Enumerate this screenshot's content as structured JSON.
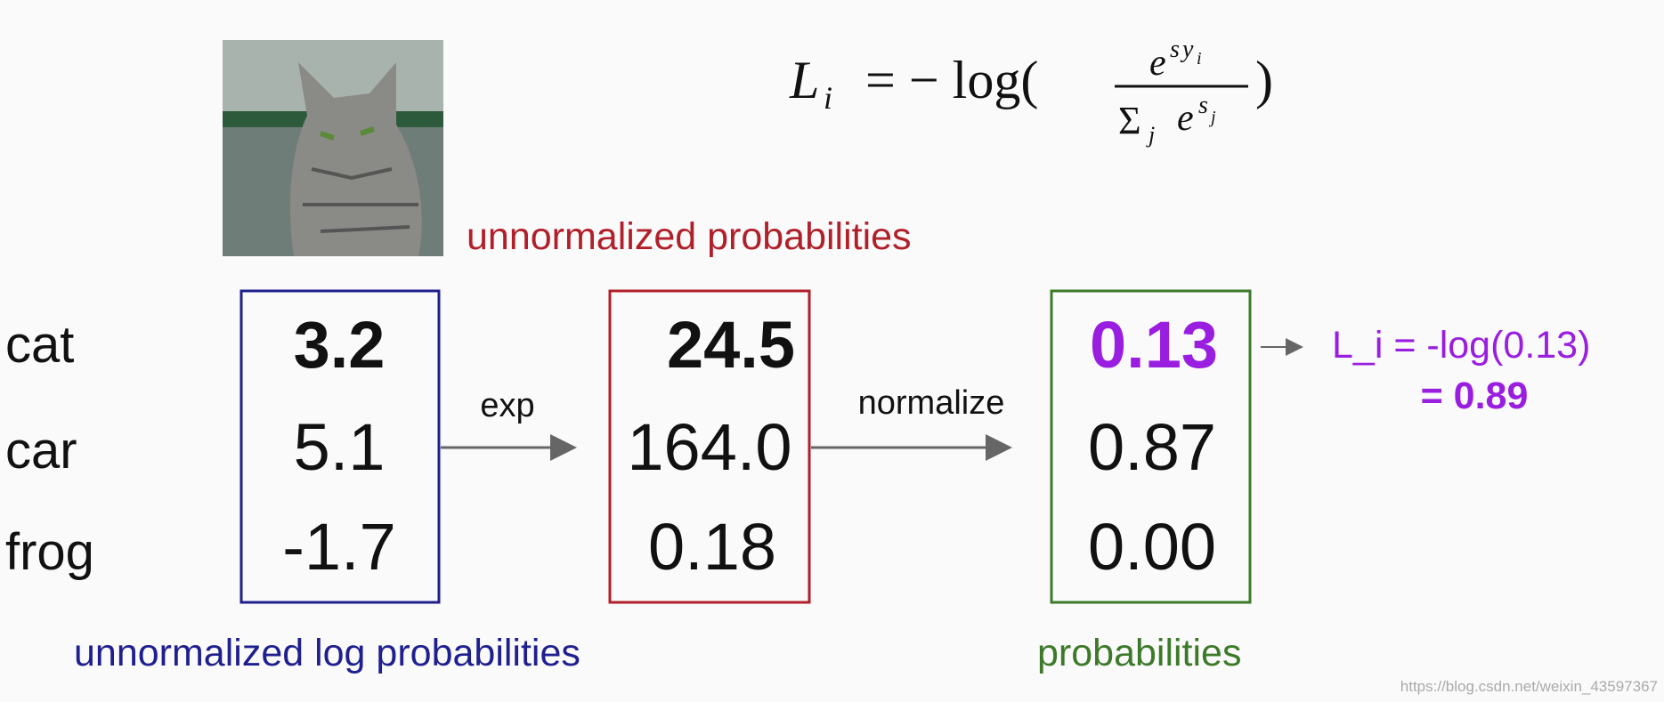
{
  "formula": {
    "lhs": "L",
    "lhs_sub": "i",
    "op": "= − log(",
    "num_base": "e",
    "num_sup": "s",
    "num_sup_sub1": "y",
    "num_sup_sub2": "i",
    "sum": "Σ",
    "sum_sub": "j",
    "den_base": "e",
    "den_sup": "s",
    "den_sup_sub": "j",
    "close": ")"
  },
  "top_label": "unnormalized probabilities",
  "classes": [
    "cat",
    "car",
    "frog"
  ],
  "scores": [
    "3.2",
    "5.1",
    "-1.7"
  ],
  "exp_values": [
    "24.5",
    "164.0",
    "0.18"
  ],
  "probabilities": [
    "0.13",
    "0.87",
    "0.00"
  ],
  "arrows": [
    "exp",
    "normalize"
  ],
  "loss": {
    "line1": "L_i = -log(0.13)",
    "line2": "= 0.89"
  },
  "bottom_labels": [
    "unnormalized log probabilities",
    "probabilities"
  ],
  "watermark": "https://blog.csdn.net/weixin_43597367"
}
